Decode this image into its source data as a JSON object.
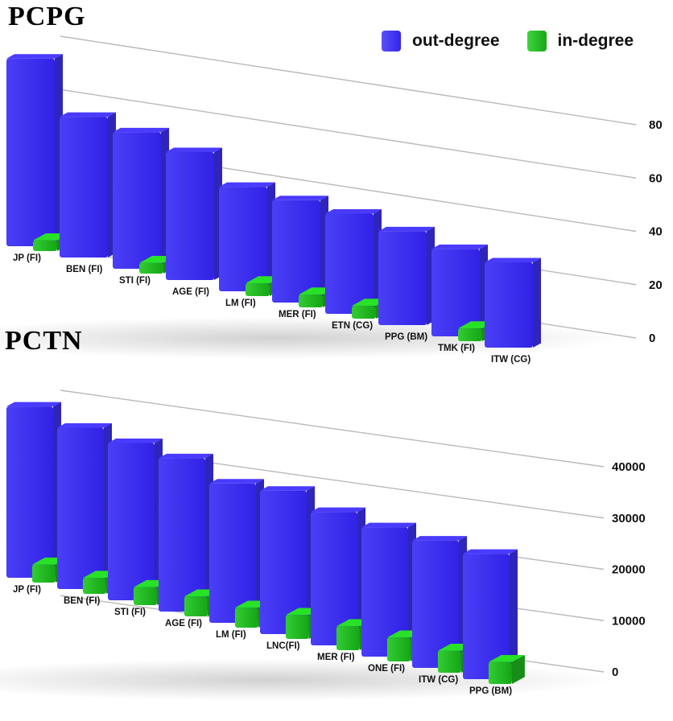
{
  "legend": {
    "out_label": "out-degree",
    "in_label": "in-degree",
    "out_color": "#3b2ff0",
    "in_color": "#1fb51f"
  },
  "chart_data": [
    {
      "type": "bar",
      "title": "PCPG",
      "categories": [
        "JP (FI)",
        "BEN (FI)",
        "STI (FI)",
        "AGE (FI)",
        "LM (FI)",
        "MER (FI)",
        "ETN (CG)",
        "PPG (BM)",
        "TMK (FI)",
        "ITW (CG)"
      ],
      "series": [
        {
          "name": "out-degree",
          "values": [
            88,
            66,
            64,
            60,
            49,
            48,
            47,
            44,
            41,
            40
          ]
        },
        {
          "name": "in-degree",
          "values": [
            5,
            0,
            5,
            0,
            6,
            6,
            6,
            0,
            6,
            0
          ]
        }
      ],
      "yticks": [
        "0",
        "20",
        "40",
        "60",
        "80"
      ],
      "ylim": [
        0,
        80
      ]
    },
    {
      "type": "bar",
      "title": "PCTN",
      "categories": [
        "JP (FI)",
        "BEN (FI)",
        "STI (FI)",
        "AGE (FI)",
        "LM (FI)",
        "LNC(FI)",
        "MER (FI)",
        "ONE (FI)",
        "ITW (CG)",
        "PPG (BM)"
      ],
      "series": [
        {
          "name": "out-degree",
          "values": [
            43000,
            40500,
            39500,
            38500,
            35000,
            36000,
            33500,
            32500,
            32000,
            31500
          ]
        },
        {
          "name": "in-degree",
          "values": [
            4500,
            4000,
            4500,
            5000,
            5000,
            6000,
            6000,
            6000,
            5500,
            5500
          ]
        }
      ],
      "yticks": [
        "0",
        "10000",
        "20000",
        "30000",
        "40000"
      ],
      "ylim": [
        0,
        40000
      ]
    }
  ]
}
